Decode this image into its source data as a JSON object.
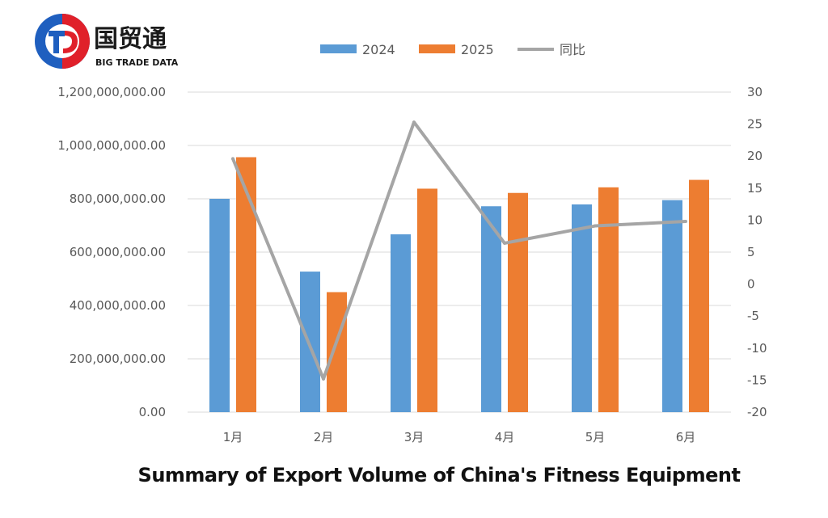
{
  "brand": {
    "name_cn": "国贸通",
    "name_en": "BIG TRADE DATA"
  },
  "caption": "Summary of Export Volume of China's Fitness Equipment",
  "colors": {
    "series_2024": "#5B9BD5",
    "series_2025": "#ED7D31",
    "series_yoy": "#A5A5A5",
    "logo_blue": "#1f5fbf",
    "logo_red": "#e0202a"
  },
  "chart_data": {
    "type": "bar",
    "categories": [
      "1月",
      "2月",
      "3月",
      "4月",
      "5月",
      "6月"
    ],
    "series": [
      {
        "name": "2024",
        "type": "bar",
        "axis": "left",
        "values": [
          800000000,
          527000000,
          667000000,
          772000000,
          779000000,
          795000000
        ]
      },
      {
        "name": "2025",
        "type": "bar",
        "axis": "left",
        "values": [
          956000000,
          450000000,
          838000000,
          822000000,
          843000000,
          871000000
        ]
      },
      {
        "name": "同比",
        "type": "line",
        "axis": "right",
        "values": [
          19.6,
          -14.8,
          25.3,
          6.4,
          9.1,
          9.8
        ]
      }
    ],
    "ylim_left": [
      0,
      1200000000
    ],
    "yticks_left": [
      "0.00",
      "200,000,000.00",
      "400,000,000.00",
      "600,000,000.00",
      "800,000,000.00",
      "1,000,000,000.00",
      "1,200,000,000.00"
    ],
    "ylim_right": [
      -20,
      30
    ],
    "yticks_right": [
      "-20",
      "-15",
      "-10",
      "-5",
      "0",
      "5",
      "10",
      "15",
      "20",
      "25",
      "30"
    ],
    "grid": true,
    "legend_position": "top-center"
  }
}
